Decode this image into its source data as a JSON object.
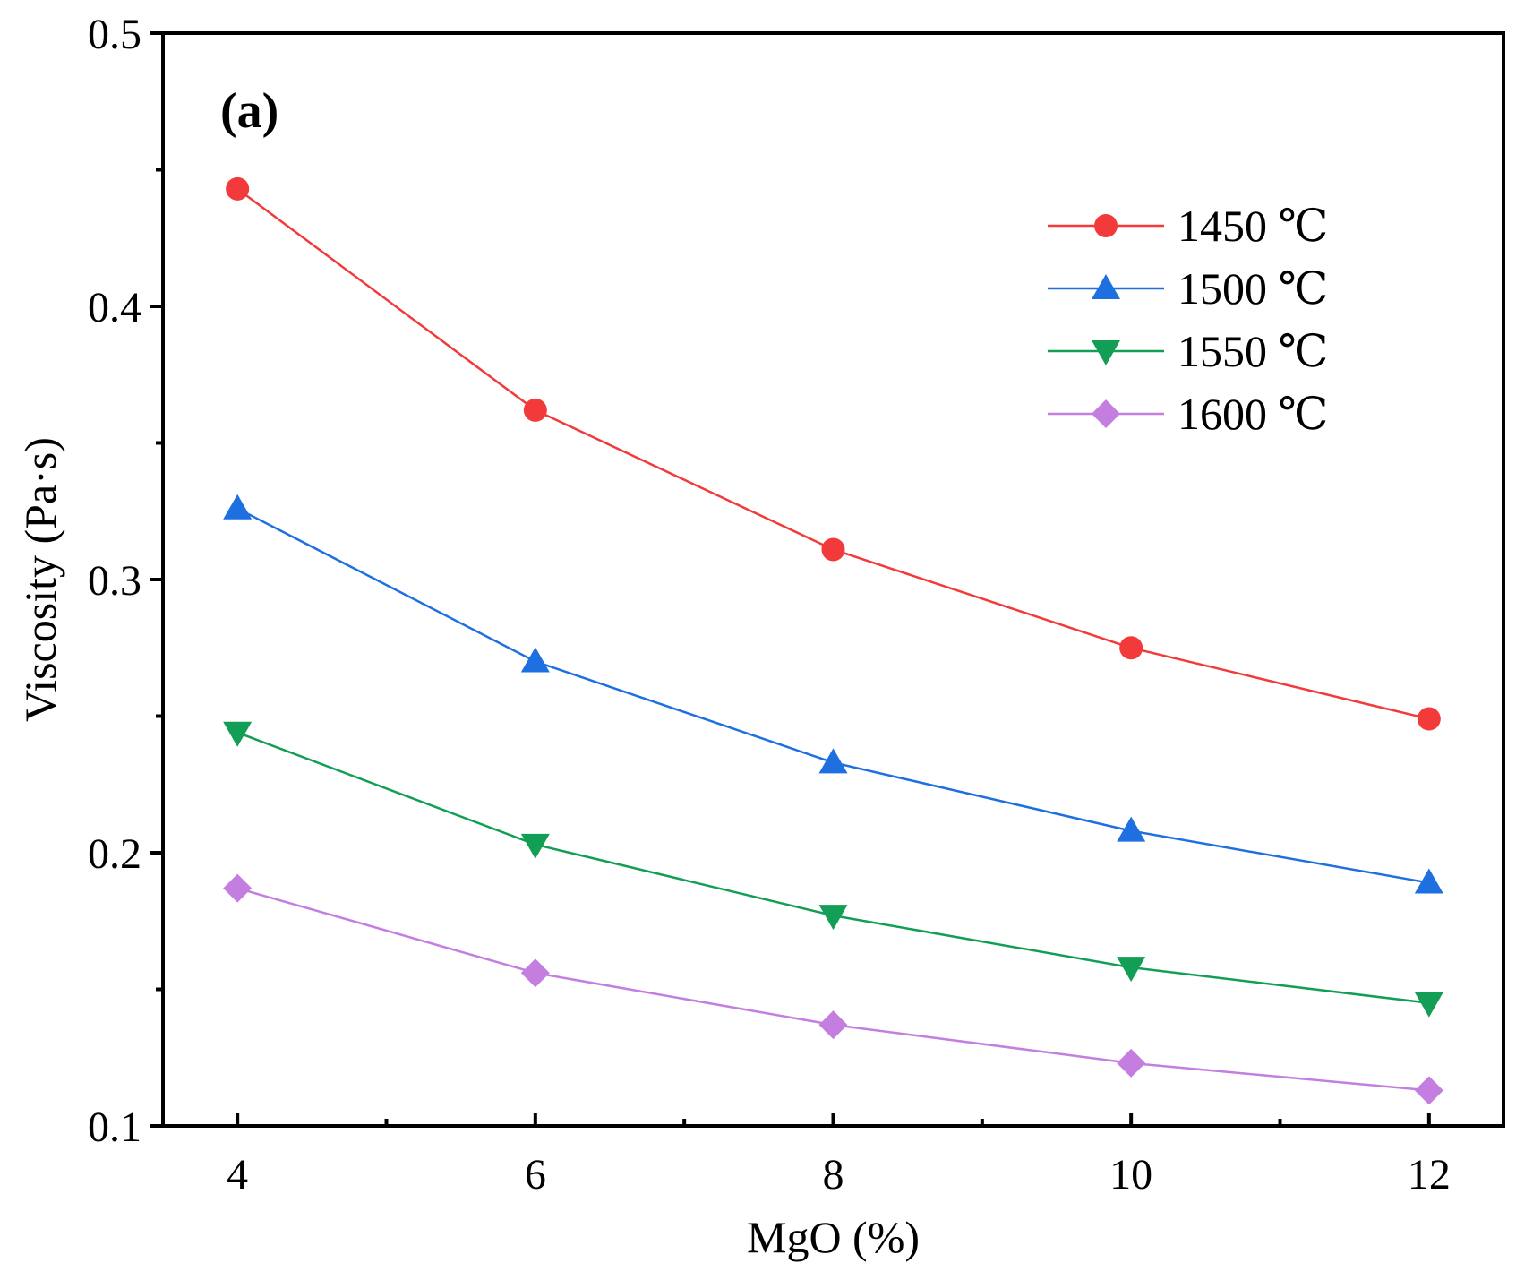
{
  "chart_data": {
    "type": "line",
    "panel_label": "(a)",
    "xlabel": "MgO (%)",
    "ylabel": "Viscosity (Pa·s)",
    "xlim": [
      3.5,
      12.5
    ],
    "ylim": [
      0.1,
      0.5
    ],
    "x_ticks": [
      "4",
      "6",
      "8",
      "10",
      "12"
    ],
    "y_ticks": [
      "0.1",
      "0.2",
      "0.3",
      "0.4",
      "0.5"
    ],
    "x": [
      4,
      6,
      8,
      10,
      12
    ],
    "legend_position": "top-right",
    "series": [
      {
        "name": "1450 ℃",
        "color": "#f23a3a",
        "marker": "circle",
        "values": [
          0.443,
          0.362,
          0.311,
          0.275,
          0.249
        ]
      },
      {
        "name": "1500 ℃",
        "color": "#1e6fe0",
        "marker": "triangle-up",
        "values": [
          0.326,
          0.27,
          0.233,
          0.208,
          0.189
        ]
      },
      {
        "name": "1550 ℃",
        "color": "#129f55",
        "marker": "triangle-down",
        "values": [
          0.244,
          0.203,
          0.177,
          0.158,
          0.145
        ]
      },
      {
        "name": "1600 ℃",
        "color": "#c47ee0",
        "marker": "diamond",
        "values": [
          0.187,
          0.156,
          0.137,
          0.123,
          0.113
        ]
      }
    ]
  }
}
